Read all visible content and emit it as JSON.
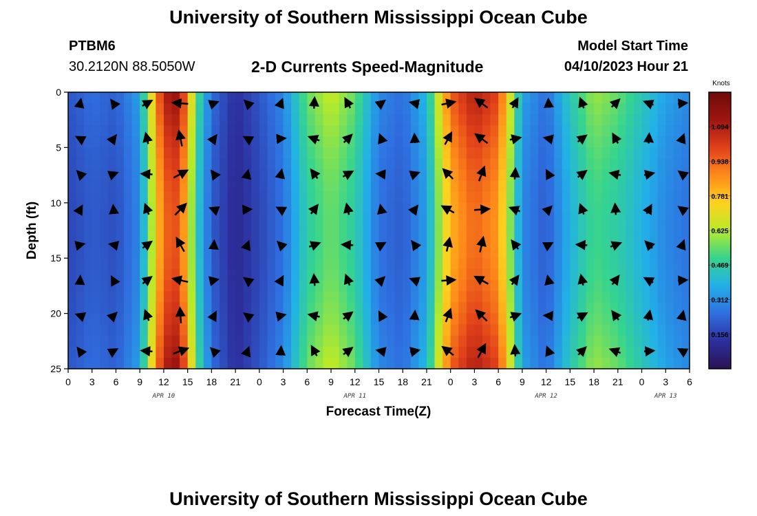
{
  "header": {
    "title": "University of Southern Mississippi Ocean Cube",
    "station": "PTBM6",
    "coordinates": "30.2120N  88.5050W",
    "subtitle": "2-D Currents Speed-Magnitude",
    "model_start_label": "Model Start Time",
    "model_start_value": "04/10/2023 Hour 21"
  },
  "footer": {
    "title": "University of Southern Mississippi Ocean Cube"
  },
  "colors": {
    "palette": [
      "#2a1352",
      "#2d2f9e",
      "#2f6fe0",
      "#22b0e8",
      "#35d48f",
      "#b7ea2a",
      "#ffd21e",
      "#ff8a1a",
      "#e0401a",
      "#a01510",
      "#6e0b08"
    ],
    "arrow": "#000000"
  },
  "chart_data": {
    "type": "heatmap",
    "title": "2-D Currents Speed-Magnitude",
    "xlabel": "Forecast Time(Z)",
    "ylabel": "Depth (ft)",
    "x_ticks": [
      "0",
      "3",
      "6",
      "9",
      "12",
      "15",
      "18",
      "21",
      "0",
      "3",
      "6",
      "9",
      "12",
      "15",
      "18",
      "21",
      "0",
      "3",
      "6",
      "9",
      "12",
      "15",
      "18",
      "21",
      "0",
      "3",
      "6"
    ],
    "y_ticks": [
      "0",
      "5",
      "10",
      "15",
      "20",
      "25"
    ],
    "y_range": [
      0,
      25
    ],
    "x_range_hours": [
      0,
      78
    ],
    "date_labels": [
      {
        "label": "APR 10",
        "hour": 12
      },
      {
        "label": "APR 11",
        "hour": 36
      },
      {
        "label": "APR 12",
        "hour": 60
      },
      {
        "label": "APR 13",
        "hour": 75
      }
    ],
    "colorbar": {
      "unit": "Knots",
      "ticks": [
        "1.094",
        "0.938",
        "0.781",
        "0.625",
        "0.469",
        "0.312",
        "0.156"
      ],
      "range": [
        0.0,
        1.25
      ]
    },
    "time_profile": [
      {
        "hour": 0,
        "speed": 0.2
      },
      {
        "hour": 3,
        "speed": 0.25
      },
      {
        "hour": 6,
        "speed": 0.22
      },
      {
        "hour": 9,
        "speed": 0.35
      },
      {
        "hour": 12,
        "speed": 1.1
      },
      {
        "hour": 14,
        "speed": 1.15
      },
      {
        "hour": 16,
        "speed": 0.55
      },
      {
        "hour": 18,
        "speed": 0.25
      },
      {
        "hour": 21,
        "speed": 0.12
      },
      {
        "hour": 24,
        "speed": 0.2
      },
      {
        "hour": 27,
        "speed": 0.3
      },
      {
        "hour": 30,
        "speed": 0.55
      },
      {
        "hour": 33,
        "speed": 0.65
      },
      {
        "hour": 36,
        "speed": 0.55
      },
      {
        "hour": 39,
        "speed": 0.3
      },
      {
        "hour": 42,
        "speed": 0.25
      },
      {
        "hour": 45,
        "speed": 0.4
      },
      {
        "hour": 48,
        "speed": 0.95
      },
      {
        "hour": 51,
        "speed": 1.1
      },
      {
        "hour": 54,
        "speed": 1.0
      },
      {
        "hour": 57,
        "speed": 0.35
      },
      {
        "hour": 60,
        "speed": 0.25
      },
      {
        "hour": 63,
        "speed": 0.45
      },
      {
        "hour": 66,
        "speed": 0.6
      },
      {
        "hour": 69,
        "speed": 0.55
      },
      {
        "hour": 72,
        "speed": 0.45
      },
      {
        "hour": 75,
        "speed": 0.35
      },
      {
        "hour": 78,
        "speed": 0.3
      }
    ]
  }
}
